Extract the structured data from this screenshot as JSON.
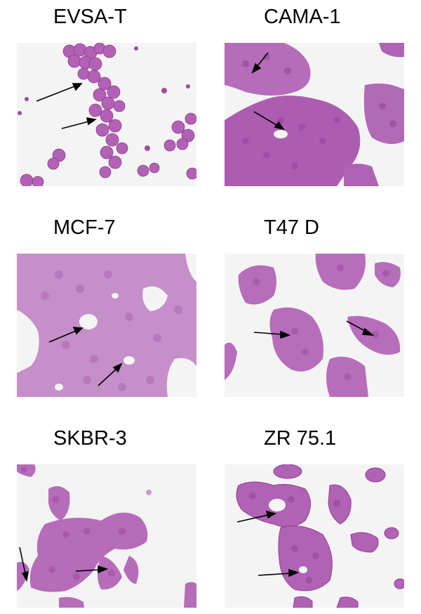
{
  "figure": {
    "panels": [
      {
        "id": "p1",
        "label": "EVSA-T",
        "arrows": 2
      },
      {
        "id": "p2",
        "label": "CAMA-1",
        "arrows": 2
      },
      {
        "id": "p3",
        "label": "MCF-7",
        "arrows": 2
      },
      {
        "id": "p4",
        "label": "T47 D",
        "arrows": 2
      },
      {
        "id": "p5",
        "label": "SKBR-3",
        "arrows": 2
      },
      {
        "id": "p6",
        "label": "ZR 75.1",
        "arrows": 2
      }
    ]
  },
  "colors": {
    "background": "#f4f4f4",
    "cell_dark": "#a44aa6",
    "cell_light": "#c98fcf",
    "nucleus": "#9a3f9e",
    "arrow": "#000000"
  }
}
